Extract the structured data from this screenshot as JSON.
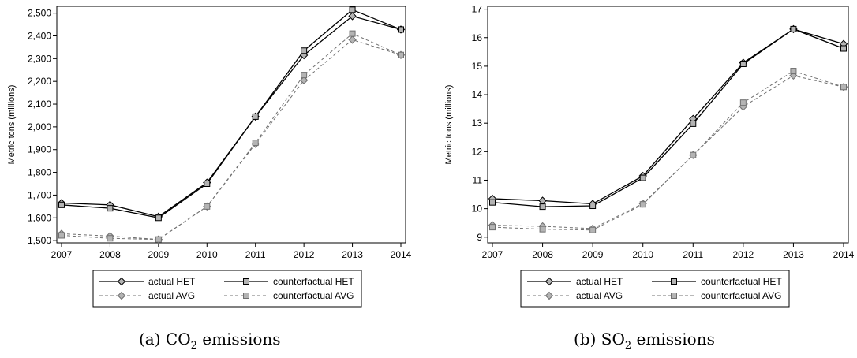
{
  "chart_data": [
    {
      "type": "line",
      "caption_prefix": "(a)",
      "caption_gas": "CO",
      "caption_sub": "2",
      "caption_suffix": "emissions",
      "ylabel": "Metric tons (millions)",
      "x": [
        2007,
        2008,
        2009,
        2010,
        2011,
        2012,
        2013,
        2014
      ],
      "ylim": [
        1490,
        2530
      ],
      "yticks": [
        1500,
        1600,
        1700,
        1800,
        1900,
        2000,
        2100,
        2200,
        2300,
        2400,
        2500
      ],
      "ytick_labels": [
        "1,500",
        "1,600",
        "1,700",
        "1,800",
        "1,900",
        "2,000",
        "2,100",
        "2,200",
        "2,300",
        "2,400",
        "2,500"
      ],
      "series": [
        {
          "name": "actual HET",
          "values": [
            1665,
            1657,
            1605,
            1755,
            2045,
            2315,
            2487,
            2428
          ]
        },
        {
          "name": "counterfactual HET",
          "values": [
            1657,
            1642,
            1600,
            1750,
            2045,
            2335,
            2515,
            2428
          ]
        },
        {
          "name": "actual AVG",
          "values": [
            1530,
            1520,
            1505,
            1650,
            1925,
            2205,
            2383,
            2316
          ]
        },
        {
          "name": "counterfactual AVG",
          "values": [
            1523,
            1510,
            1505,
            1650,
            1930,
            2228,
            2410,
            2316
          ]
        }
      ]
    },
    {
      "type": "line",
      "caption_prefix": "(b)",
      "caption_gas": "SO",
      "caption_sub": "2",
      "caption_suffix": "emissions",
      "ylabel": "Metric tons (millions)",
      "x": [
        2007,
        2008,
        2009,
        2010,
        2011,
        2012,
        2013,
        2014
      ],
      "ylim": [
        8.8,
        17.1
      ],
      "yticks": [
        9,
        10,
        11,
        12,
        13,
        14,
        15,
        16,
        17
      ],
      "ytick_labels": [
        "9",
        "10",
        "11",
        "12",
        "13",
        "14",
        "15",
        "16",
        "17"
      ],
      "series": [
        {
          "name": "actual HET",
          "values": [
            10.35,
            10.28,
            10.17,
            11.15,
            13.15,
            15.12,
            16.3,
            15.78
          ]
        },
        {
          "name": "counterfactual HET",
          "values": [
            10.22,
            10.07,
            10.1,
            11.08,
            12.98,
            15.08,
            16.3,
            15.62
          ]
        },
        {
          "name": "actual AVG",
          "values": [
            9.42,
            9.38,
            9.3,
            10.18,
            11.88,
            13.58,
            14.67,
            14.27
          ]
        },
        {
          "name": "counterfactual AVG",
          "values": [
            9.35,
            9.28,
            9.25,
            10.15,
            11.88,
            13.72,
            14.83,
            14.27
          ]
        }
      ]
    }
  ],
  "legend": {
    "items": [
      {
        "label": "actual HET",
        "style": "solid",
        "marker": "diamond"
      },
      {
        "label": "counterfactual HET",
        "style": "solid",
        "marker": "square"
      },
      {
        "label": "actual AVG",
        "style": "dashed",
        "marker": "diamond"
      },
      {
        "label": "counterfactual AVG",
        "style": "dashed",
        "marker": "square"
      }
    ]
  },
  "colors": {
    "solid": "#000000",
    "dashed": "#707070",
    "marker_fill": "#b4b4b4",
    "frame": "#000000"
  }
}
